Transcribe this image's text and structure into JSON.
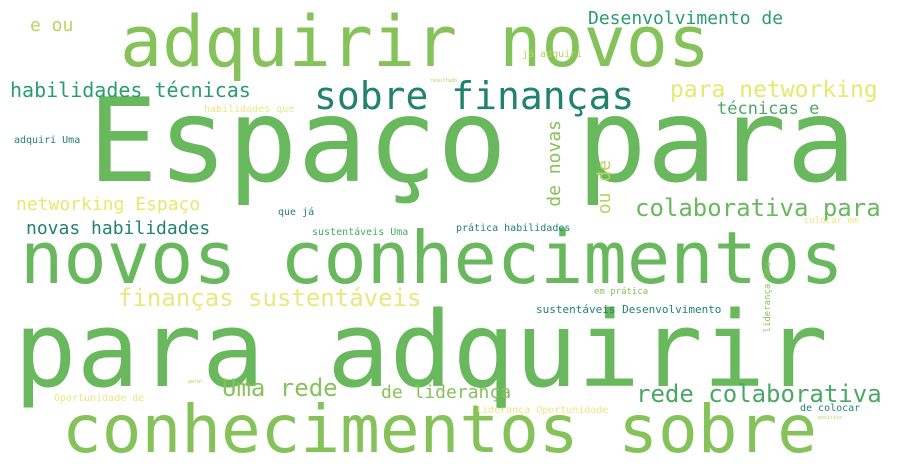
{
  "wordcloud": {
    "palette": {
      "dark_green": "#21826f",
      "teal": "#2a9d6e",
      "green": "#4aa864",
      "mid_green": "#6ab85e",
      "light_green": "#86c25a",
      "yellow_green": "#b5d55c",
      "yellow": "#e3ea6d",
      "pale_yellow": "#e9e880"
    },
    "words": [
      "Espaço para",
      "para adquirir",
      "novos conhecimentos",
      "adquirir novos",
      "conhecimentos sobre",
      "sobre finanças",
      "para networking",
      "colaborativa para",
      "rede colaborativa",
      "Desenvolvimento de",
      "habilidades técnicas",
      "finanças sustentáveis",
      "Uma rede",
      "de liderança",
      "novas habilidades",
      "networking Espaço",
      "técnicas e",
      "de novas",
      "ou de",
      "e ou",
      "já adquiri",
      "habilidades que",
      "adquiri Uma",
      "que já",
      "sustentáveis Uma",
      "prática habilidades",
      "sustentáveis Desenvolvimento",
      "em prática",
      "liderança Uma",
      "colocar em",
      "Oportunidade de",
      "liderança Oportunidade",
      "de colocar",
      "resultado",
      "gerar",
      "positivo"
    ]
  }
}
